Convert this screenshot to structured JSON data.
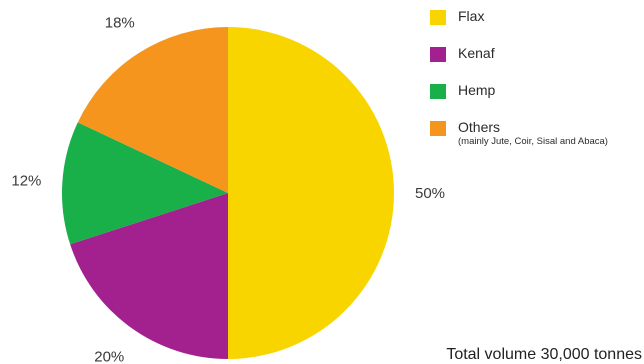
{
  "chart_data": {
    "type": "pie",
    "categories": [
      "Flax",
      "Kenaf",
      "Hemp",
      "Others"
    ],
    "values": [
      50,
      20,
      12,
      18
    ],
    "value_labels": [
      "50%",
      "20%",
      "12%",
      "18%"
    ],
    "colors": [
      "#F9D500",
      "#A3208F",
      "#19AF49",
      "#F5951E"
    ],
    "legend": [
      {
        "label": "Flax",
        "sub": ""
      },
      {
        "label": "Kenaf",
        "sub": ""
      },
      {
        "label": "Hemp",
        "sub": ""
      },
      {
        "label": "Others",
        "sub": "(mainly Jute, Coir, Sisal and Abaca)"
      }
    ],
    "legend_position": "top-right",
    "start_angle": "top",
    "direction": "clockwise",
    "annotation": "Total volume 30,000 tonnes"
  }
}
